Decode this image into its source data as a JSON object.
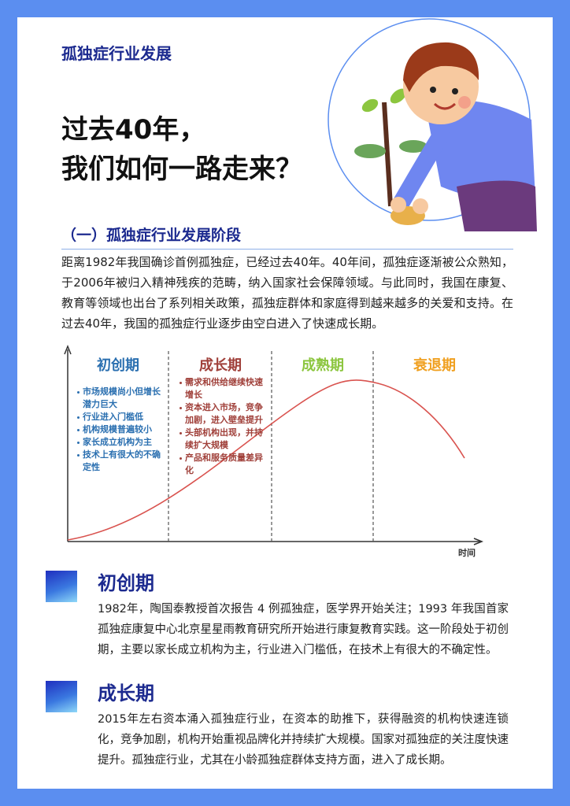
{
  "header": {
    "category": "孤独症行业发展",
    "title_lines": [
      "过去40年，",
      "我们如何一路走来？"
    ]
  },
  "section": {
    "heading": "（一）孤独症行业发展阶段",
    "paragraph": "距离1982年我国确诊首例孤独症，已经过去40年。40年间，孤独症逐渐被公众熟知，于2006年被归入精神残疾的范畴，纳入国家社会保障领域。与此同时，我国在康复、教育等领域也出台了系列相关政策，孤独症群体和家庭得到越来越多的关爱和支持。在过去40年，我国的孤独症行业逐步由空白进入了快速成长期。"
  },
  "diagram": {
    "stages": [
      {
        "name": "初创期",
        "points": [
          "市场规模尚小但增长潜力巨大",
          "行业进入门槛低",
          "机构规模普遍较小",
          "家长成立机构为主",
          "技术上有很大的不确定性"
        ]
      },
      {
        "name": "成长期",
        "points": [
          "需求和供给继续快速增长",
          "资本进入市场，竞争加剧，进入壁垒提升",
          "头部机构出现，并持续扩大规模",
          "产品和服务质量差异化"
        ]
      },
      {
        "name": "成熟期"
      },
      {
        "name": "衰退期"
      }
    ],
    "x_axis_label": "时间"
  },
  "phases": [
    {
      "title": "初创期",
      "text": "1982年，陶国泰教授首次报告 4 例孤独症，医学界开始关注；1993 年我国首家孤独症康复中心北京星星雨教育研究所开始进行康复教育实践。这一阶段处于初创期，主要以家长成立机构为主，行业进入门槛低，在技术上有很大的不确定性。"
    },
    {
      "title": "成长期",
      "text": "2015年左右资本涌入孤独症行业，在资本的助推下，获得融资的机构快速连锁化，竞争加剧，机构开始重视品牌化并持续扩大规模。国家对孤独症的关注度快速提升。孤独症行业，尤其在小龄孤独症群体支持方面，进入了成长期。"
    }
  ]
}
